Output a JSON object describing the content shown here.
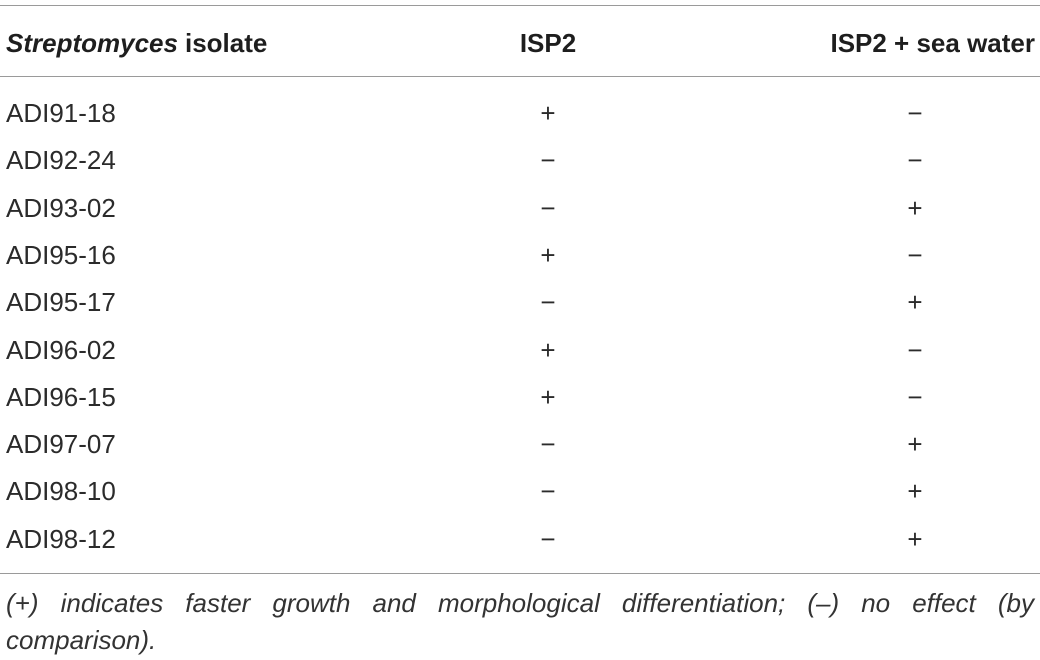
{
  "table": {
    "header": [
      [
        "Streptomyces",
        "isolate"
      ],
      "ISP2",
      "ISP2 + sea water"
    ],
    "rows": [
      [
        "ADI91-18",
        "+",
        "−"
      ],
      [
        "ADI92-24",
        "−",
        "−"
      ],
      [
        "ADI93-02",
        "−",
        "+"
      ],
      [
        "ADI95-16",
        "+",
        "−"
      ],
      [
        "ADI95-17",
        "−",
        "+"
      ],
      [
        "ADI96-02",
        "+",
        "−"
      ],
      [
        "ADI96-15",
        "+",
        "−"
      ],
      [
        "ADI97-07",
        "−",
        "+"
      ],
      [
        "ADI98-10",
        "−",
        "+"
      ],
      [
        "ADI98-12",
        "−",
        "+"
      ]
    ],
    "footnote": "(+) indicates faster growth and morphological differentiation; (–) no effect (by comparison)."
  }
}
